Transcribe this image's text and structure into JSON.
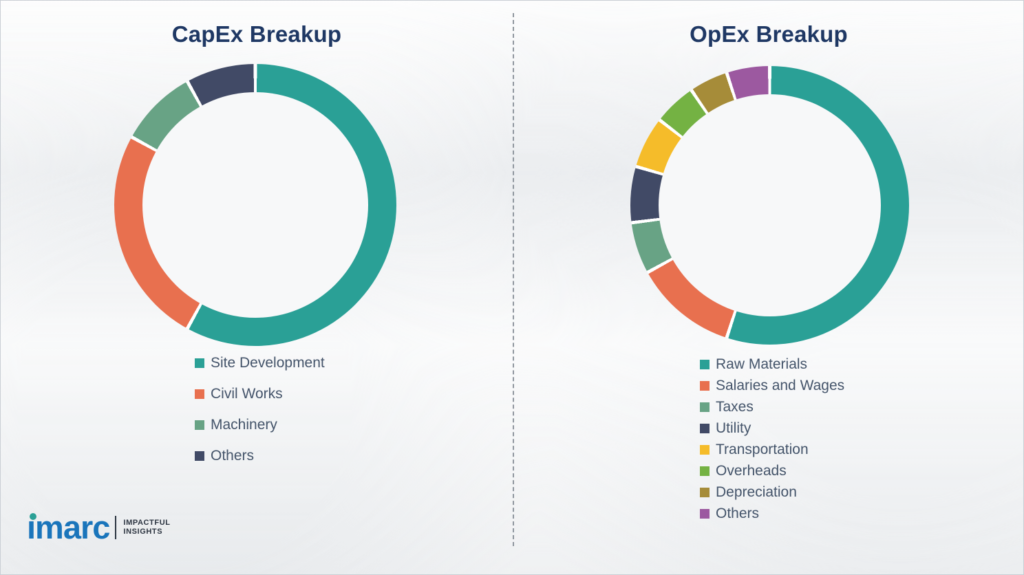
{
  "charts_section": {
    "left_title": "CapEx Breakup",
    "right_title": "OpEx Breakup"
  },
  "chart_data": [
    {
      "type": "pie",
      "subtype": "donut",
      "title": "CapEx Breakup",
      "legend_position": "bottom",
      "start_angle_deg": 0,
      "direction": "clockwise",
      "segments": [
        {
          "label": "Site Development",
          "value": 58,
          "color": "#2aa096"
        },
        {
          "label": "Civil Works",
          "value": 25,
          "color": "#e8704f"
        },
        {
          "label": "Machinery",
          "value": 9,
          "color": "#68a385"
        },
        {
          "label": "Others",
          "value": 8,
          "color": "#414a66"
        }
      ]
    },
    {
      "type": "pie",
      "subtype": "donut",
      "title": "OpEx Breakup",
      "legend_position": "bottom",
      "start_angle_deg": 0,
      "direction": "clockwise",
      "segments": [
        {
          "label": "Raw Materials",
          "value": 55,
          "color": "#2aa096"
        },
        {
          "label": "Salaries and Wages",
          "value": 12,
          "color": "#e8704f"
        },
        {
          "label": "Taxes",
          "value": 6,
          "color": "#68a385"
        },
        {
          "label": "Utility",
          "value": 6.5,
          "color": "#414a66"
        },
        {
          "label": "Transportation",
          "value": 6,
          "color": "#f5bc2a"
        },
        {
          "label": "Overheads",
          "value": 5,
          "color": "#74b243"
        },
        {
          "label": "Depreciation",
          "value": 4.5,
          "color": "#a68c39"
        },
        {
          "label": "Others",
          "value": 5,
          "color": "#9c59a0"
        }
      ]
    }
  ],
  "logo": {
    "brand": "imarc",
    "brand_display": "ımarc",
    "tagline_line1": "IMPACTFUL",
    "tagline_line2": "INSIGHTS",
    "brand_color": "#1a75bb",
    "dot_color": "#2aa096"
  },
  "style": {
    "title_color": "#1f3864",
    "legend_text_color": "#44546a",
    "divider_style": "dashed"
  }
}
